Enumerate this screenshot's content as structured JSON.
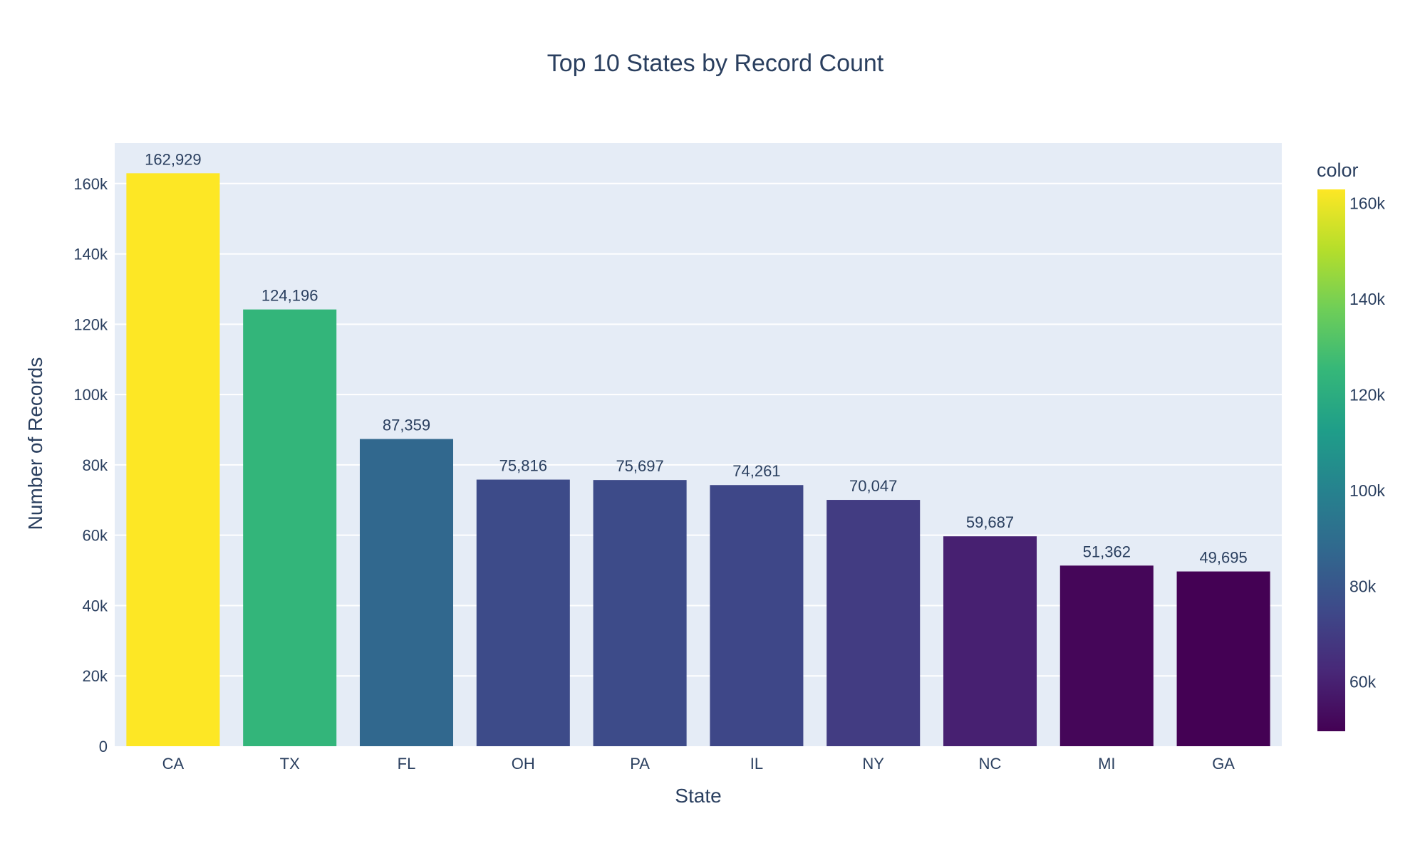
{
  "chart_data": {
    "type": "bar",
    "title": "Top 10 States by Record Count",
    "xlabel": "State",
    "ylabel": "Number of Records",
    "categories": [
      "CA",
      "TX",
      "FL",
      "OH",
      "PA",
      "IL",
      "NY",
      "NC",
      "MI",
      "GA"
    ],
    "values": [
      162929,
      124196,
      87359,
      75816,
      75697,
      74261,
      70047,
      59687,
      51362,
      49695
    ],
    "data_labels": [
      "162,929",
      "124,196",
      "87,359",
      "75,816",
      "75,697",
      "74,261",
      "70,047",
      "59,687",
      "51,362",
      "49,695"
    ],
    "ylim": [
      0,
      171500
    ],
    "y_ticks": [
      {
        "value": 0,
        "label": "0"
      },
      {
        "value": 20000,
        "label": "20k"
      },
      {
        "value": 40000,
        "label": "40k"
      },
      {
        "value": 60000,
        "label": "60k"
      },
      {
        "value": 80000,
        "label": "80k"
      },
      {
        "value": 100000,
        "label": "100k"
      },
      {
        "value": 120000,
        "label": "120k"
      },
      {
        "value": 140000,
        "label": "140k"
      },
      {
        "value": 160000,
        "label": "160k"
      }
    ],
    "grid": true,
    "plot_background": "#e5ecf6",
    "colorscale": "Viridis",
    "colorbar": {
      "title": "color",
      "range": [
        49695,
        162929
      ],
      "ticks": [
        {
          "value": 60000,
          "label": "60k"
        },
        {
          "value": 80000,
          "label": "80k"
        },
        {
          "value": 100000,
          "label": "100k"
        },
        {
          "value": 120000,
          "label": "120k"
        },
        {
          "value": 140000,
          "label": "140k"
        },
        {
          "value": 160000,
          "label": "160k"
        }
      ],
      "placement": "right"
    }
  }
}
